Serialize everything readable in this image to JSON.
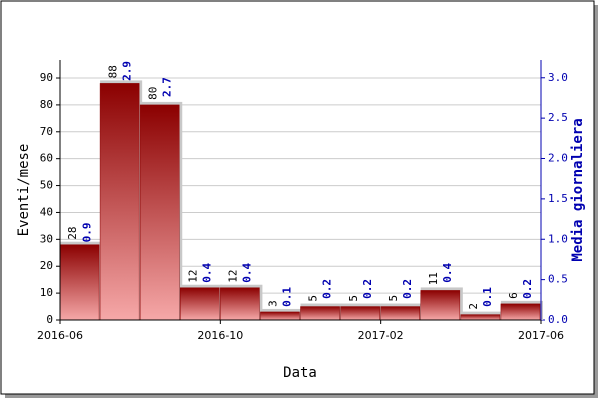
{
  "chart_data": {
    "type": "bar",
    "xlabel": "Data",
    "ylabel": "Eventi/mese",
    "y2label": "Media giornaliera",
    "xlim": [
      0,
      12
    ],
    "xticks": [
      {
        "value": 0,
        "label": "2016-06"
      },
      {
        "value": 4,
        "label": "2016-10"
      },
      {
        "value": 8,
        "label": "2017-02"
      },
      {
        "value": 12,
        "label": "2017-06"
      }
    ],
    "ylim": [
      0,
      96.7
    ],
    "yticks": [
      0,
      10,
      20,
      30,
      40,
      50,
      60,
      70,
      80,
      90
    ],
    "y2lim": [
      0,
      3.22
    ],
    "y2ticks": [
      {
        "value": 0,
        "label": "0.0"
      },
      {
        "value": 0.5,
        "label": "0.5"
      },
      {
        "value": 1,
        "label": "1.0"
      },
      {
        "value": 1.5,
        "label": "1.5"
      },
      {
        "value": 2,
        "label": "2.0"
      },
      {
        "value": 2.5,
        "label": "2.5"
      },
      {
        "value": 3,
        "label": "3.0"
      }
    ],
    "grid": true,
    "series": [
      {
        "name": "Eventi/mese",
        "color": "#8b0000",
        "values": [
          28,
          88,
          80,
          12,
          12,
          3,
          5,
          5,
          5,
          11,
          2,
          6
        ]
      },
      {
        "name": "Media giornaliera",
        "color": "#0000b0",
        "axis": "y2",
        "values": [
          0.9,
          2.9,
          2.7,
          0.4,
          0.4,
          0.1,
          0.2,
          0.2,
          0.2,
          0.4,
          0.1,
          0.2
        ]
      }
    ]
  }
}
